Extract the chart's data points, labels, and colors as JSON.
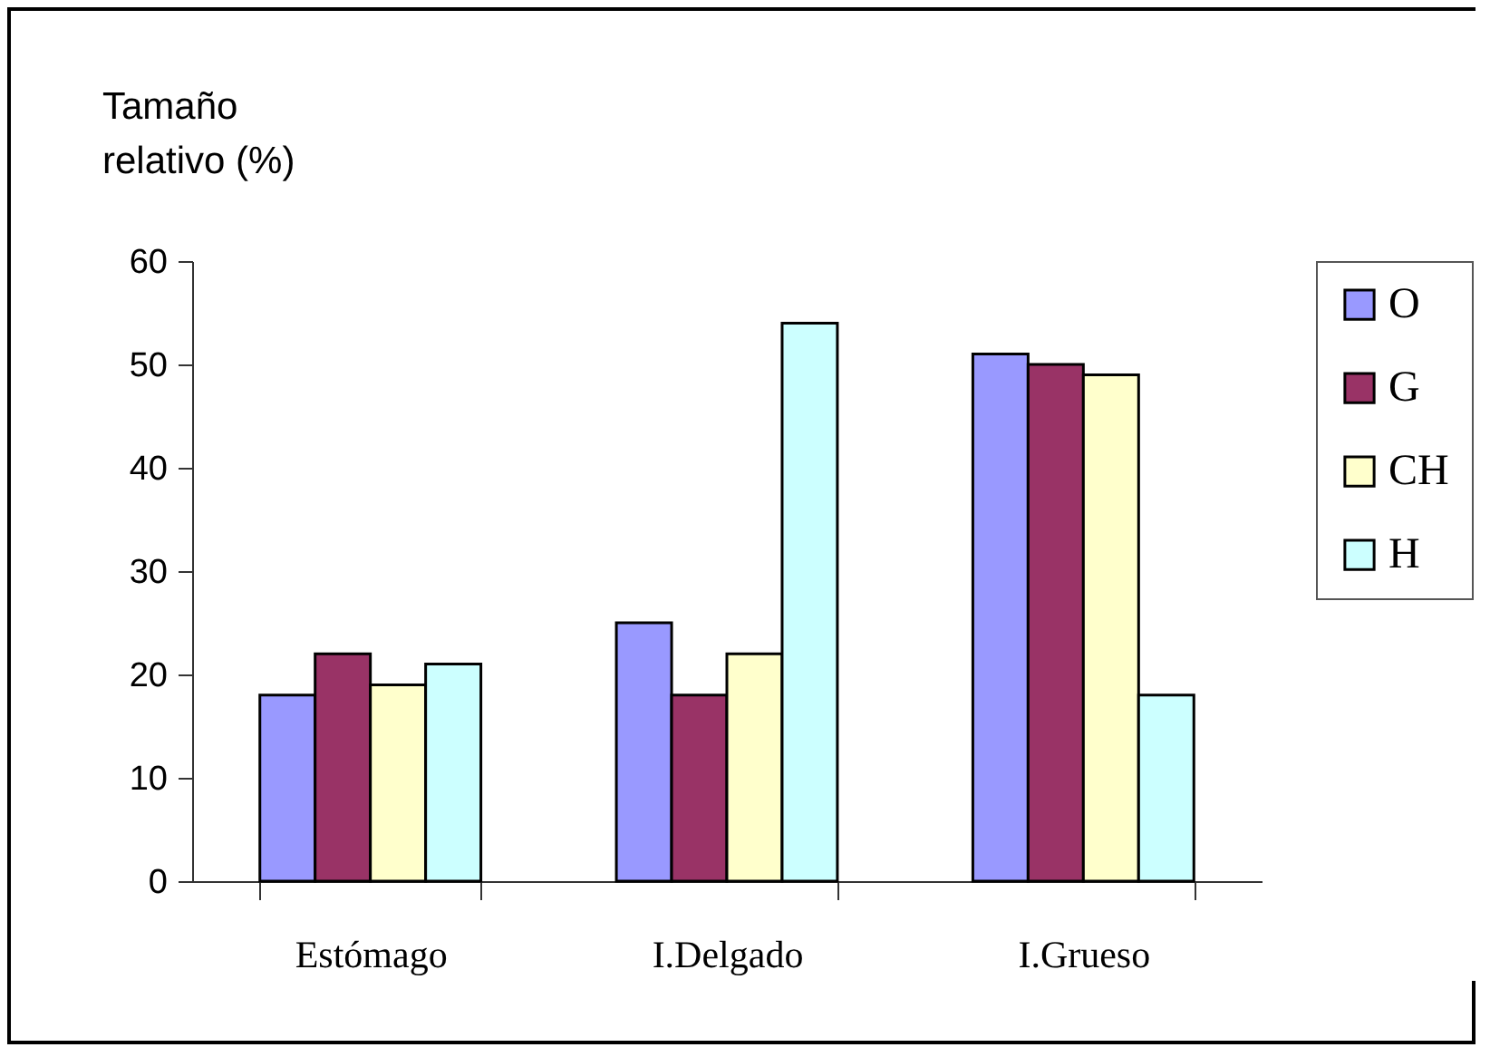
{
  "chart_data": {
    "type": "bar",
    "ylabel": "Tamaño relativo (%)",
    "categories": [
      "Estómago",
      "I.Delgado",
      "I.Grueso"
    ],
    "series": [
      {
        "name": "O",
        "color": "#9999ff",
        "values": [
          18,
          25,
          51
        ]
      },
      {
        "name": "G",
        "color": "#993366",
        "values": [
          22,
          18,
          50
        ]
      },
      {
        "name": "CH",
        "color": "#ffffcc",
        "values": [
          19,
          22,
          49
        ]
      },
      {
        "name": "H",
        "color": "#ccffff",
        "values": [
          21,
          54,
          18
        ]
      }
    ],
    "ylim": [
      0,
      60
    ],
    "yticks": [
      0,
      10,
      20,
      30,
      40,
      50,
      60
    ],
    "grid": false,
    "legend": "right"
  }
}
